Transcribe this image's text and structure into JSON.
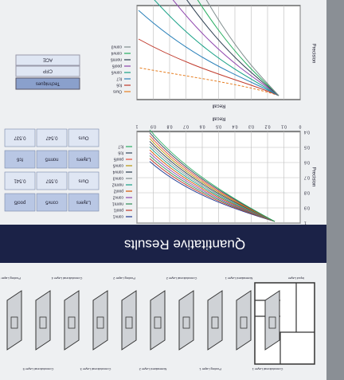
{
  "banner": "Quantitative Results",
  "architecture": {
    "layers": [
      "Input Layer",
      "Convolutional Layer 1",
      "Normalized Layer 1",
      "Pooling Layer 1",
      "Convolutional Layer 2",
      "Normalized Layer 2",
      "Pooling Layer 2",
      "Convolutional Layer 3",
      "Convolutional Layer 4",
      "Convolutional Layer 5",
      "Pooling Layer 5"
    ]
  },
  "chart1": {
    "xlabel": "Recall",
    "ylabel": "Precision",
    "xticks": [
      "0",
      "0.1",
      "0.2",
      "0.3",
      "0.4",
      "0.5",
      "0.6",
      "0.7",
      "0.8",
      "0.9",
      "1"
    ],
    "yticks": [
      "1",
      "0.9",
      "0.8",
      "0.7",
      "0.6",
      "0.5",
      "0.4"
    ],
    "legend": [
      "conv1",
      "pool1",
      "norm1",
      "conv2",
      "pool2",
      "norm2",
      "conv3",
      "conv4",
      "conv5",
      "pool5",
      "fc6",
      "fc7"
    ]
  },
  "chart2": {
    "xlabel": "Recall",
    "ylabel": "Precision",
    "legend": [
      "Ours",
      "fc6",
      "fc7",
      "conv5",
      "pool5",
      "norm5",
      "conv4",
      "conv3"
    ]
  },
  "table1": {
    "rows": [
      [
        "Layers",
        "conv5",
        "pool5"
      ],
      [
        "Ours",
        "0.557",
        "0.541"
      ],
      [
        "Layers",
        "norm5",
        "fc6"
      ],
      [
        "Ours",
        "0.547",
        "0.537"
      ]
    ]
  },
  "table2": {
    "title": "Techniques",
    "rows": [
      [
        "CFP"
      ],
      [
        "ACE"
      ]
    ]
  }
}
